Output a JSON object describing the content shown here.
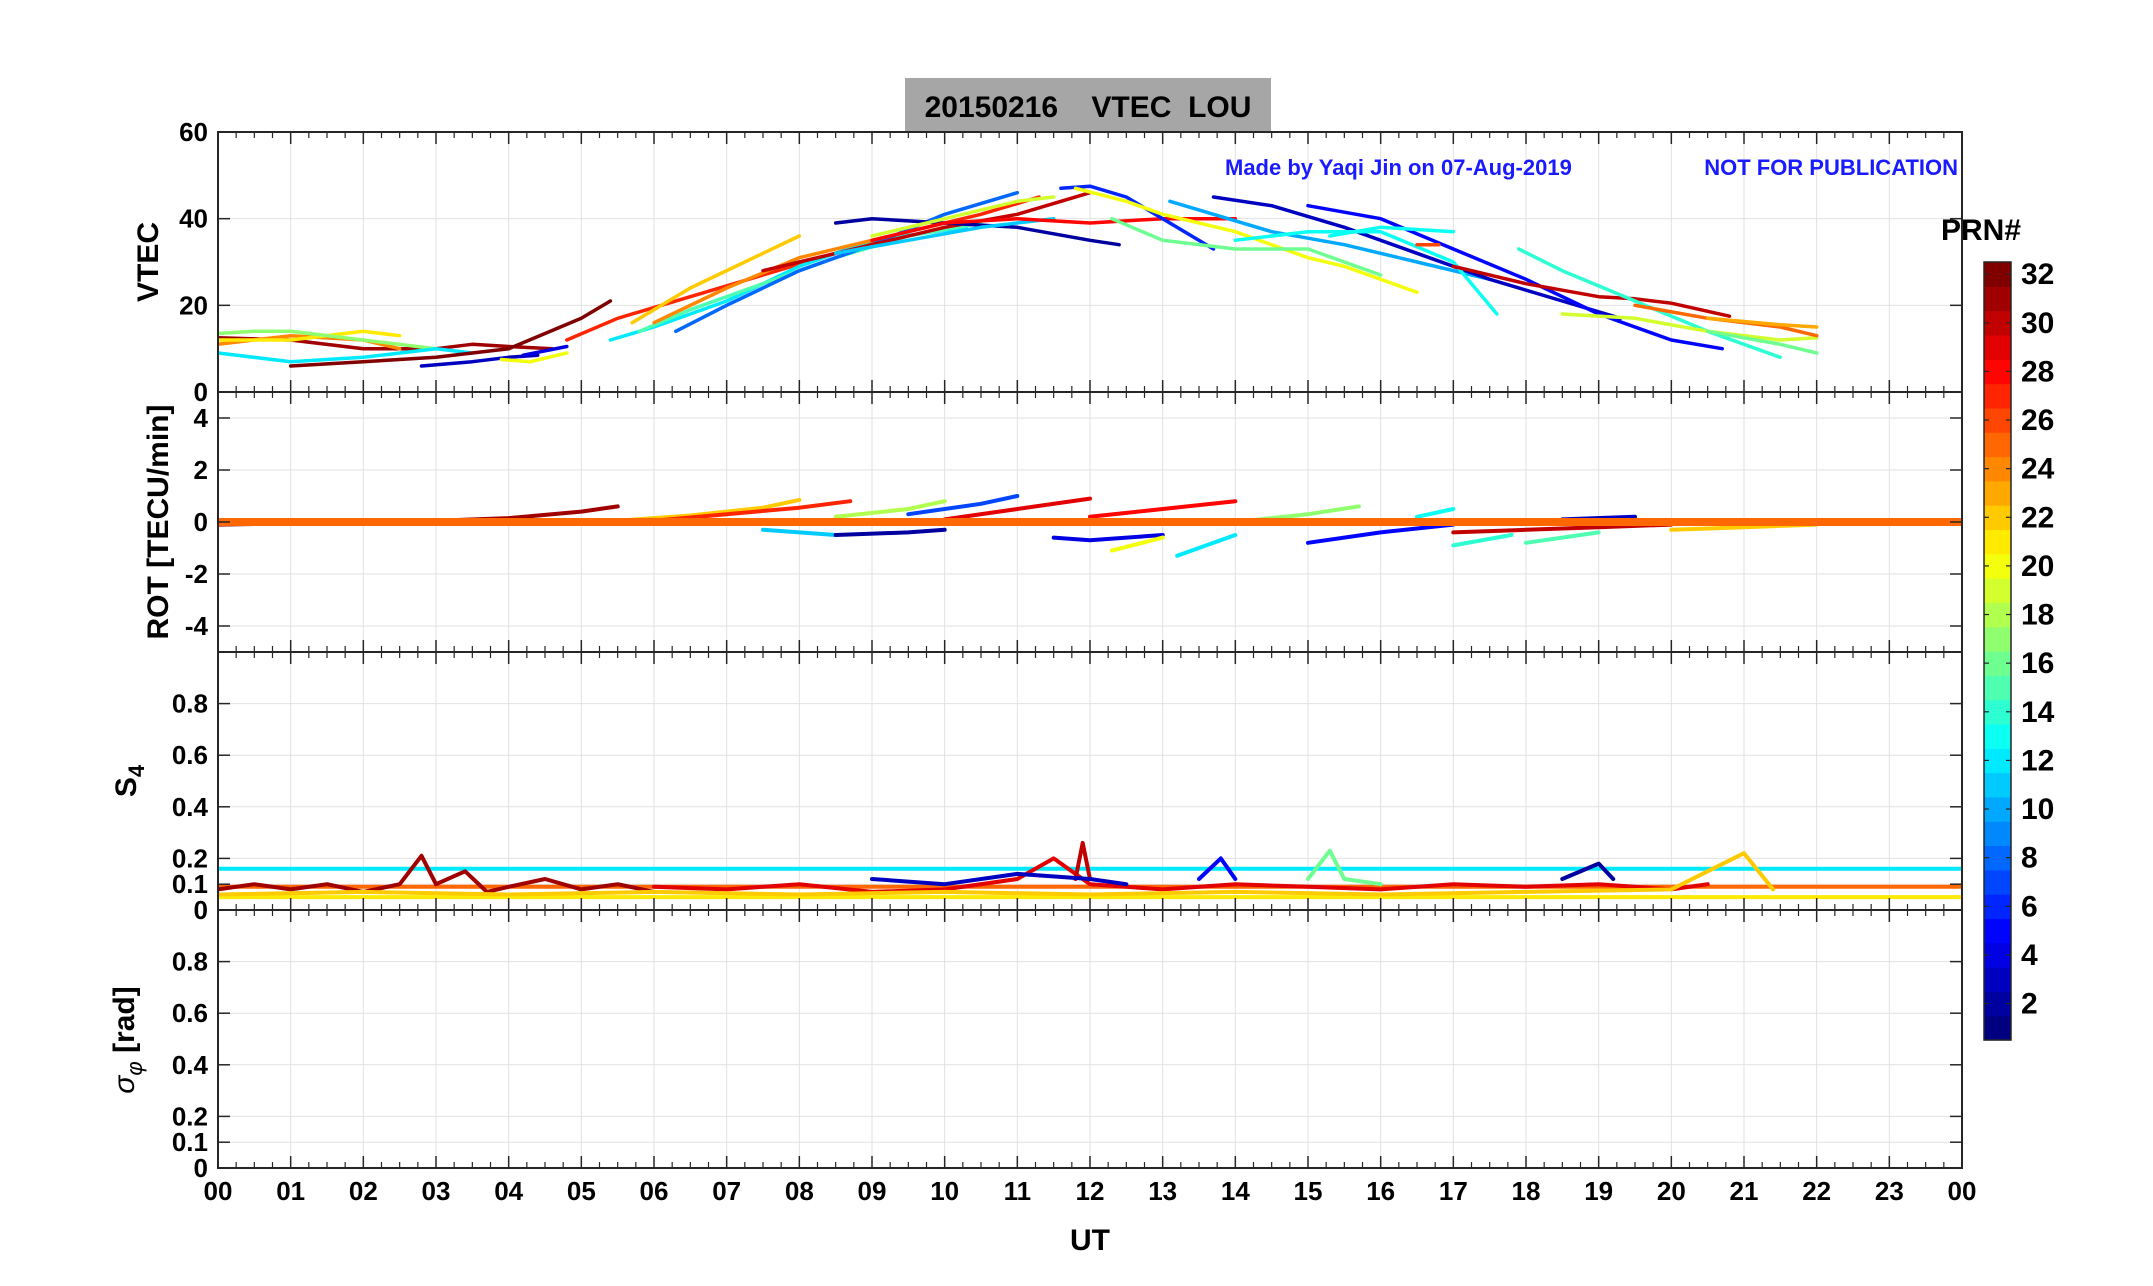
{
  "header": {
    "title": "20150216    VTEC  LOU",
    "credit": "Made by Yaqi Jin on 07-Aug-2019",
    "notice": "NOT FOR PUBLICATION"
  },
  "colorbar": {
    "label": "PRN#",
    "ticks": [
      "2",
      "4",
      "6",
      "8",
      "10",
      "12",
      "14",
      "16",
      "18",
      "20",
      "22",
      "24",
      "26",
      "28",
      "30",
      "32"
    ],
    "range": [
      1,
      32
    ],
    "colormap": "jet"
  },
  "x_axis": {
    "label": "UT",
    "ticks": [
      "00",
      "01",
      "02",
      "03",
      "04",
      "05",
      "06",
      "07",
      "08",
      "09",
      "10",
      "11",
      "12",
      "13",
      "14",
      "15",
      "16",
      "17",
      "18",
      "19",
      "20",
      "21",
      "22",
      "23",
      "00"
    ]
  },
  "chart_data": [
    {
      "type": "line",
      "name": "vtec",
      "ylabel": "VTEC",
      "ylim": [
        0,
        60
      ],
      "yticks": [
        "0",
        "20",
        "40",
        "60"
      ],
      "ytick_values": [
        0,
        20,
        40,
        60
      ],
      "xlim": [
        0,
        24
      ],
      "series": [
        {
          "prn": 31,
          "x": [
            0,
            1,
            2,
            3,
            3.5,
            4,
            4.6
          ],
          "values": [
            12.5,
            12,
            10,
            10,
            11,
            10.5,
            10
          ]
        },
        {
          "prn": 24,
          "x": [
            0,
            1,
            2,
            2.5
          ],
          "values": [
            11,
            13,
            12,
            10
          ]
        },
        {
          "prn": 21,
          "x": [
            0,
            1,
            2,
            2.5
          ],
          "values": [
            12,
            12,
            14,
            13
          ]
        },
        {
          "prn": 17,
          "x": [
            0,
            0.5,
            1,
            2,
            3
          ],
          "values": [
            13.5,
            14,
            14,
            12,
            10
          ]
        },
        {
          "prn": 12,
          "x": [
            0,
            1,
            2,
            3,
            3.5
          ],
          "values": [
            9,
            7,
            8,
            10,
            9
          ]
        },
        {
          "prn": 32,
          "x": [
            1,
            2,
            3,
            4,
            5,
            5.4
          ],
          "values": [
            6,
            7,
            8,
            10,
            17,
            21
          ]
        },
        {
          "prn": 3,
          "x": [
            2.8,
            3.5,
            4,
            4.4
          ],
          "values": [
            6,
            7,
            8,
            8.5
          ]
        },
        {
          "prn": 20,
          "x": [
            3.9,
            4.3,
            4.8
          ],
          "values": [
            7.5,
            7,
            9
          ]
        },
        {
          "prn": 4,
          "x": [
            4.2,
            4.8
          ],
          "values": [
            8.5,
            10.5
          ]
        },
        {
          "prn": 27,
          "x": [
            4.8,
            5.5,
            6.5,
            7.5,
            8.5,
            9.5,
            10.5,
            11.3
          ],
          "values": [
            12,
            17,
            22,
            27,
            32,
            37,
            41,
            45
          ]
        },
        {
          "prn": 12,
          "x": [
            5.4,
            6,
            7,
            8,
            9,
            10.3
          ],
          "values": [
            12,
            15,
            21,
            29,
            35,
            38
          ]
        },
        {
          "prn": 15,
          "x": [
            5.8,
            6.5,
            7.5,
            8.5,
            9.5,
            10.5
          ],
          "values": [
            14,
            19,
            25,
            31,
            36,
            39
          ]
        },
        {
          "prn": 22,
          "x": [
            5.7,
            6.5,
            7.5,
            8
          ],
          "values": [
            16,
            24,
            32,
            36
          ]
        },
        {
          "prn": 24,
          "x": [
            6,
            7,
            8,
            9,
            9.5
          ],
          "values": [
            16,
            24,
            31,
            35,
            37
          ]
        },
        {
          "prn": 8,
          "x": [
            6.3,
            7,
            8,
            9,
            10,
            11
          ],
          "values": [
            14,
            20,
            28,
            34,
            41,
            46
          ]
        },
        {
          "prn": 30,
          "x": [
            7.5,
            8,
            9,
            10,
            11,
            12
          ],
          "values": [
            28,
            30,
            34,
            38,
            41,
            46
          ]
        },
        {
          "prn": 2,
          "x": [
            8.5,
            9,
            10,
            11,
            12,
            12.4
          ],
          "values": [
            39,
            40,
            39,
            38,
            35,
            34
          ]
        },
        {
          "prn": 11,
          "x": [
            8.5,
            9.5,
            10.5,
            11.5
          ],
          "values": [
            32,
            35,
            38,
            40
          ]
        },
        {
          "prn": 19,
          "x": [
            9,
            10,
            11,
            11.5
          ],
          "values": [
            36,
            40,
            44,
            45
          ]
        },
        {
          "prn": 28,
          "x": [
            9,
            10,
            11,
            12,
            13,
            14
          ],
          "values": [
            35,
            39,
            40,
            39,
            40,
            40
          ]
        },
        {
          "prn": 6,
          "x": [
            11.6,
            12,
            12.5,
            13,
            13.7
          ],
          "values": [
            47,
            47.5,
            45,
            40,
            33
          ]
        },
        {
          "prn": 20,
          "x": [
            11.8,
            12.5,
            13,
            14,
            15,
            15.5,
            16.5
          ],
          "values": [
            47,
            44,
            41,
            37,
            31,
            29,
            23
          ]
        },
        {
          "prn": 16,
          "x": [
            12.3,
            13,
            14,
            15,
            16
          ],
          "values": [
            40,
            35,
            33,
            33,
            27
          ]
        },
        {
          "prn": 10,
          "x": [
            13.1,
            13.7,
            14.5,
            15.5,
            16.5,
            17.5
          ],
          "values": [
            44,
            41,
            37,
            34,
            30,
            26
          ]
        },
        {
          "prn": 3,
          "x": [
            13.7,
            14.5,
            15.5,
            16.5,
            17.5,
            18.5,
            19.3
          ],
          "values": [
            45,
            43,
            38,
            32,
            26,
            21,
            17
          ]
        },
        {
          "prn": 13,
          "x": [
            14,
            15,
            16,
            17,
            17.6
          ],
          "values": [
            35,
            37,
            37,
            30,
            18
          ]
        },
        {
          "prn": 5,
          "x": [
            15,
            16,
            17,
            18,
            19,
            20,
            20.7
          ],
          "values": [
            43,
            40,
            33,
            26,
            18,
            12,
            10
          ]
        },
        {
          "prn": 13,
          "x": [
            15.3,
            16,
            17
          ],
          "values": [
            36,
            38,
            37
          ]
        },
        {
          "prn": 26,
          "x": [
            16.5,
            16.8
          ],
          "values": [
            34,
            34
          ]
        },
        {
          "prn": 30,
          "x": [
            17,
            18,
            19,
            19.5,
            20,
            20.8
          ],
          "values": [
            29,
            25,
            22,
            21.5,
            20.5,
            17.5
          ]
        },
        {
          "prn": 14,
          "x": [
            17.9,
            18.5,
            19.5,
            20.5,
            21.5
          ],
          "values": [
            33,
            28,
            21,
            14,
            8
          ]
        },
        {
          "prn": 19,
          "x": [
            18.5,
            19.5,
            20.5,
            21.5,
            22
          ],
          "values": [
            18,
            17,
            14,
            12,
            12.5
          ]
        },
        {
          "prn": 25,
          "x": [
            19.5,
            20.5,
            21.5,
            22
          ],
          "values": [
            20,
            17,
            15,
            13
          ]
        },
        {
          "prn": 23,
          "x": [
            20.5,
            21.5,
            22
          ],
          "values": [
            17,
            15.5,
            15
          ]
        },
        {
          "prn": 16,
          "x": [
            20.5,
            21.5,
            22
          ],
          "values": [
            14,
            11,
            9
          ]
        }
      ]
    },
    {
      "type": "line",
      "name": "rot",
      "ylabel": "ROT [TECU/min]",
      "ylim": [
        -5,
        5
      ],
      "yticks": [
        "-4",
        "-2",
        "0",
        "2",
        "4"
      ],
      "ytick_values": [
        -4,
        -2,
        0,
        2,
        4
      ],
      "xlim": [
        0,
        24
      ],
      "baseline": {
        "prn": 25,
        "x": [
          0,
          24
        ],
        "values": [
          0,
          0
        ]
      },
      "series": [
        {
          "prn": 31,
          "x": [
            0,
            1,
            2,
            3,
            4,
            5,
            5.5
          ],
          "values": [
            -0.1,
            -0.05,
            0,
            0.05,
            0.15,
            0.4,
            0.6
          ]
        },
        {
          "prn": 22,
          "x": [
            5.5,
            6.5,
            7.5,
            8
          ],
          "values": [
            0.05,
            0.25,
            0.55,
            0.85
          ]
        },
        {
          "prn": 27,
          "x": [
            6,
            7,
            8,
            8.7
          ],
          "values": [
            0.05,
            0.3,
            0.55,
            0.8
          ]
        },
        {
          "prn": 18,
          "x": [
            8.5,
            9.5,
            10
          ],
          "values": [
            0.2,
            0.5,
            0.8
          ]
        },
        {
          "prn": 7,
          "x": [
            9.5,
            10.5,
            11
          ],
          "values": [
            0.3,
            0.7,
            1
          ]
        },
        {
          "prn": 29,
          "x": [
            10,
            11,
            12
          ],
          "values": [
            0.1,
            0.5,
            0.9
          ]
        },
        {
          "prn": 11,
          "x": [
            7.5,
            8.5
          ],
          "values": [
            -0.3,
            -0.5
          ]
        },
        {
          "prn": 2,
          "x": [
            8.5,
            9.5,
            10
          ],
          "values": [
            -0.5,
            -0.4,
            -0.3
          ]
        },
        {
          "prn": 28,
          "x": [
            12,
            13,
            14
          ],
          "values": [
            0.2,
            0.5,
            0.8
          ]
        },
        {
          "prn": 4,
          "x": [
            11.5,
            12,
            13
          ],
          "values": [
            -0.6,
            -0.7,
            -0.5
          ]
        },
        {
          "prn": 20,
          "x": [
            12.3,
            13
          ],
          "values": [
            -1.1,
            -0.6
          ]
        },
        {
          "prn": 12,
          "x": [
            13.2,
            14
          ],
          "values": [
            -1.3,
            -0.5
          ]
        },
        {
          "prn": 17,
          "x": [
            14,
            15,
            15.7
          ],
          "values": [
            0,
            0.3,
            0.6
          ]
        },
        {
          "prn": 5,
          "x": [
            15,
            16,
            17
          ],
          "values": [
            -0.8,
            -0.4,
            -0.1
          ]
        },
        {
          "prn": 13,
          "x": [
            16.5,
            17
          ],
          "values": [
            0.2,
            0.5
          ]
        },
        {
          "prn": 14,
          "x": [
            17,
            17.8
          ],
          "values": [
            -0.9,
            -0.5
          ]
        },
        {
          "prn": 15,
          "x": [
            18,
            19
          ],
          "values": [
            -0.8,
            -0.4
          ]
        },
        {
          "prn": 30,
          "x": [
            17,
            18,
            19,
            20
          ],
          "values": [
            -0.4,
            -0.3,
            -0.2,
            -0.1
          ]
        },
        {
          "prn": 3,
          "x": [
            18.5,
            19.5
          ],
          "values": [
            0.1,
            0.2
          ]
        },
        {
          "prn": 22,
          "x": [
            20,
            21,
            22
          ],
          "values": [
            -0.3,
            -0.2,
            -0.1
          ]
        }
      ]
    },
    {
      "type": "line",
      "name": "s4",
      "ylabel": "S4",
      "ylim": [
        0,
        1
      ],
      "yticks": [
        "0",
        "0.1",
        "0.2",
        "0.4",
        "0.6",
        "0.8"
      ],
      "ytick_values": [
        0,
        0.1,
        0.2,
        0.4,
        0.6,
        0.8
      ],
      "xlim": [
        0,
        24
      ],
      "flat_lines": [
        {
          "prn": 12,
          "x": [
            0,
            24
          ],
          "values": [
            0.16,
            0.16
          ]
        },
        {
          "prn": 25,
          "x": [
            0,
            24
          ],
          "values": [
            0.09,
            0.09
          ]
        },
        {
          "prn": 21,
          "x": [
            0,
            24
          ],
          "values": [
            0.05,
            0.05
          ]
        }
      ],
      "series": [
        {
          "prn": 31,
          "x": [
            0,
            0.5,
            1,
            1.5,
            2,
            2.5,
            2.8,
            3,
            3.4,
            3.7,
            4,
            4.5,
            5,
            5.5,
            6
          ],
          "values": [
            0.08,
            0.1,
            0.08,
            0.1,
            0.07,
            0.1,
            0.21,
            0.1,
            0.15,
            0.07,
            0.09,
            0.12,
            0.08,
            0.1,
            0.07
          ]
        },
        {
          "prn": 29,
          "x": [
            6,
            7,
            8,
            9,
            10,
            11,
            11.5,
            12,
            12.5,
            13,
            14,
            15,
            16,
            17,
            18,
            19,
            20,
            20.5
          ],
          "values": [
            0.09,
            0.08,
            0.1,
            0.07,
            0.08,
            0.12,
            0.2,
            0.1,
            0.09,
            0.08,
            0.1,
            0.09,
            0.08,
            0.1,
            0.09,
            0.1,
            0.08,
            0.1
          ]
        },
        {
          "prn": 30,
          "x": [
            11.8,
            11.9,
            12
          ],
          "values": [
            0.12,
            0.26,
            0.12
          ]
        },
        {
          "prn": 3,
          "x": [
            9,
            10,
            11,
            12,
            12.5
          ],
          "values": [
            0.12,
            0.1,
            0.14,
            0.12,
            0.1
          ]
        },
        {
          "prn": 22,
          "x": [
            0,
            2,
            4,
            6,
            8,
            10,
            12,
            14,
            16,
            18,
            20,
            21,
            21.4
          ],
          "values": [
            0.06,
            0.07,
            0.06,
            0.07,
            0.06,
            0.07,
            0.06,
            0.07,
            0.06,
            0.07,
            0.08,
            0.22,
            0.08
          ]
        },
        {
          "prn": 16,
          "x": [
            15,
            15.3,
            15.5,
            16
          ],
          "values": [
            0.12,
            0.23,
            0.12,
            0.1
          ]
        },
        {
          "prn": 5,
          "x": [
            13.5,
            13.8,
            14
          ],
          "values": [
            0.12,
            0.2,
            0.12
          ]
        },
        {
          "prn": 2,
          "x": [
            18.5,
            19,
            19.2
          ],
          "values": [
            0.12,
            0.18,
            0.12
          ]
        }
      ]
    },
    {
      "type": "line",
      "name": "sigma_phi",
      "ylabel": "σ_φ [rad]",
      "ylim": [
        0,
        1
      ],
      "yticks": [
        "0",
        "0.1",
        "0.2",
        "0.4",
        "0.6",
        "0.8"
      ],
      "ytick_values": [
        0,
        0.1,
        0.2,
        0.4,
        0.6,
        0.8
      ],
      "xlim": [
        0,
        24
      ],
      "series": []
    }
  ]
}
